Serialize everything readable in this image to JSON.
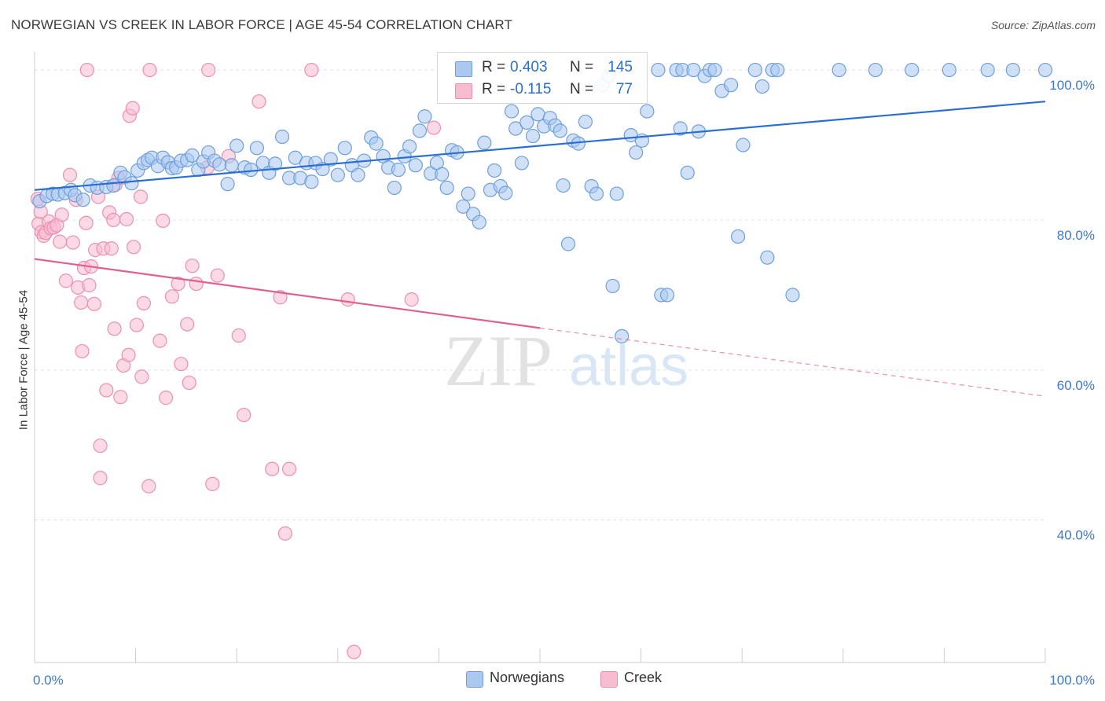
{
  "header": {
    "title": "NORWEGIAN VS CREEK IN LABOR FORCE | AGE 45-54 CORRELATION CHART",
    "source": "Source: ZipAtlas.com"
  },
  "watermark": {
    "zip": "ZIP",
    "atlas": "atlas"
  },
  "stats": [
    {
      "r_label": "R =",
      "r_value": "0.403",
      "n_label": "N =",
      "n_value": "145",
      "color": "#aac8f0",
      "text_color": "#2a6fcf"
    },
    {
      "r_label": "R =",
      "r_value": "-0.115",
      "n_label": "N =",
      "n_value": "77",
      "color": "#f7bcd0",
      "text_color": "#2a6fcf"
    }
  ],
  "legend": [
    {
      "label": "Norwegians",
      "color": "#aac8f0"
    },
    {
      "label": "Creek",
      "color": "#f7bcd0"
    }
  ],
  "chart_data": {
    "type": "scatter",
    "title": "NORWEGIAN VS CREEK IN LABOR FORCE | AGE 45-54 CORRELATION CHART",
    "xlabel": "",
    "ylabel": "In Labor Force | Age 45-54",
    "xlim": [
      0,
      100
    ],
    "ylim": [
      21,
      102
    ],
    "x_tick_labels": [
      {
        "value": 0,
        "label": "0.0%"
      },
      {
        "value": 100,
        "label": "100.0%"
      }
    ],
    "y_tick_labels": [
      {
        "value": 100,
        "label": "100.0%"
      },
      {
        "value": 80,
        "label": "80.0%"
      },
      {
        "value": 60,
        "label": "60.0%"
      },
      {
        "value": 40,
        "label": "40.0%"
      }
    ],
    "grid": true,
    "legend_position": "bottom-center",
    "series": [
      {
        "name": "Norwegians",
        "color": "#aac8f0",
        "stroke": "#6f9fdc",
        "trend": {
          "x": [
            0,
            100
          ],
          "y": [
            84.0,
            95.8
          ],
          "color": "#2a6fcf"
        },
        "points": [
          [
            0.5,
            82.5
          ],
          [
            1.2,
            83.2
          ],
          [
            1.8,
            83.5
          ],
          [
            2.3,
            83.4
          ],
          [
            3.0,
            83.6
          ],
          [
            3.6,
            84.0
          ],
          [
            4.0,
            83.3
          ],
          [
            4.8,
            82.7
          ],
          [
            5.5,
            84.6
          ],
          [
            6.2,
            84.3
          ],
          [
            7.1,
            84.4
          ],
          [
            7.8,
            84.6
          ],
          [
            8.5,
            86.3
          ],
          [
            8.9,
            85.7
          ],
          [
            9.6,
            84.9
          ],
          [
            10.2,
            86.6
          ],
          [
            10.8,
            87.6
          ],
          [
            11.2,
            88.0
          ],
          [
            11.6,
            88.3
          ],
          [
            12.2,
            87.2
          ],
          [
            12.7,
            88.3
          ],
          [
            13.2,
            87.7
          ],
          [
            13.6,
            86.9
          ],
          [
            14.0,
            87.0
          ],
          [
            14.5,
            87.9
          ],
          [
            15.1,
            88.0
          ],
          [
            15.6,
            88.6
          ],
          [
            16.2,
            86.7
          ],
          [
            16.7,
            87.8
          ],
          [
            17.2,
            89.0
          ],
          [
            17.8,
            87.9
          ],
          [
            18.3,
            87.4
          ],
          [
            19.1,
            84.8
          ],
          [
            19.5,
            87.3
          ],
          [
            20.0,
            89.9
          ],
          [
            20.8,
            87.0
          ],
          [
            21.4,
            86.7
          ],
          [
            22.0,
            89.6
          ],
          [
            22.6,
            87.6
          ],
          [
            23.2,
            86.3
          ],
          [
            23.8,
            87.5
          ],
          [
            24.5,
            91.1
          ],
          [
            25.2,
            85.6
          ],
          [
            25.8,
            88.3
          ],
          [
            26.3,
            85.6
          ],
          [
            26.9,
            87.6
          ],
          [
            27.4,
            85.1
          ],
          [
            27.8,
            87.6
          ],
          [
            28.5,
            86.8
          ],
          [
            29.3,
            88.1
          ],
          [
            30.0,
            86.0
          ],
          [
            30.7,
            89.6
          ],
          [
            31.4,
            87.3
          ],
          [
            32.0,
            86.0
          ],
          [
            32.6,
            87.9
          ],
          [
            33.3,
            91.0
          ],
          [
            33.8,
            90.2
          ],
          [
            34.5,
            88.5
          ],
          [
            35.0,
            87.0
          ],
          [
            35.6,
            84.3
          ],
          [
            36.0,
            86.7
          ],
          [
            36.6,
            88.5
          ],
          [
            37.1,
            89.8
          ],
          [
            37.7,
            87.3
          ],
          [
            38.1,
            91.9
          ],
          [
            38.6,
            93.8
          ],
          [
            39.2,
            86.2
          ],
          [
            39.8,
            87.6
          ],
          [
            40.3,
            86.1
          ],
          [
            40.8,
            84.3
          ],
          [
            41.3,
            89.3
          ],
          [
            41.8,
            89.0
          ],
          [
            42.4,
            81.8
          ],
          [
            42.9,
            83.5
          ],
          [
            43.4,
            80.8
          ],
          [
            44.0,
            79.7
          ],
          [
            44.5,
            90.3
          ],
          [
            45.1,
            84.0
          ],
          [
            45.5,
            86.6
          ],
          [
            46.1,
            84.5
          ],
          [
            46.6,
            83.6
          ],
          [
            47.2,
            94.5
          ],
          [
            47.6,
            92.2
          ],
          [
            48.2,
            87.6
          ],
          [
            48.7,
            93.0
          ],
          [
            49.3,
            91.2
          ],
          [
            49.8,
            94.1
          ],
          [
            50.4,
            92.5
          ],
          [
            51.0,
            93.6
          ],
          [
            51.5,
            92.6
          ],
          [
            52.0,
            91.9
          ],
          [
            52.3,
            84.6
          ],
          [
            52.8,
            76.8
          ],
          [
            53.3,
            90.6
          ],
          [
            53.8,
            90.2
          ],
          [
            54.5,
            93.1
          ],
          [
            55.1,
            84.5
          ],
          [
            55.6,
            83.5
          ],
          [
            56.2,
            98.0
          ],
          [
            56.8,
            99.2
          ],
          [
            57.2,
            71.2
          ],
          [
            57.6,
            83.5
          ],
          [
            58.1,
            64.5
          ],
          [
            59.0,
            91.3
          ],
          [
            59.5,
            89.0
          ],
          [
            60.1,
            90.6
          ],
          [
            60.6,
            94.5
          ],
          [
            61.7,
            100.0
          ],
          [
            62.0,
            70.0
          ],
          [
            62.6,
            70.0
          ],
          [
            63.5,
            100.0
          ],
          [
            63.9,
            92.2
          ],
          [
            64.1,
            100.0
          ],
          [
            64.6,
            86.3
          ],
          [
            65.2,
            100.0
          ],
          [
            65.7,
            91.8
          ],
          [
            66.3,
            99.2
          ],
          [
            66.8,
            100.0
          ],
          [
            67.3,
            100.0
          ],
          [
            68.0,
            97.2
          ],
          [
            68.9,
            98.0
          ],
          [
            69.6,
            77.8
          ],
          [
            70.1,
            90.0
          ],
          [
            71.3,
            100.0
          ],
          [
            72.0,
            97.8
          ],
          [
            72.5,
            75.0
          ],
          [
            73.0,
            100.0
          ],
          [
            73.5,
            100.0
          ],
          [
            75.0,
            70.0
          ],
          [
            79.6,
            100.0
          ],
          [
            83.2,
            100.0
          ],
          [
            86.8,
            100.0
          ],
          [
            90.5,
            100.0
          ],
          [
            94.3,
            100.0
          ],
          [
            96.8,
            100.0
          ],
          [
            100.0,
            100.0
          ]
        ]
      },
      {
        "name": "Creek",
        "color": "#f7bcd0",
        "stroke": "#eb8fb0",
        "trend": {
          "x": [
            0,
            50
          ],
          "y": [
            74.8,
            65.6
          ],
          "color": "#e0608e",
          "dashed_extension": {
            "x": [
              50,
              100
            ],
            "y": [
              65.6,
              56.5
            ]
          }
        },
        "points": [
          [
            0.4,
            79.5
          ],
          [
            0.7,
            78.4
          ],
          [
            0.9,
            77.9
          ],
          [
            1.1,
            78.3
          ],
          [
            1.4,
            79.8
          ],
          [
            1.6,
            78.9
          ],
          [
            1.9,
            79.0
          ],
          [
            2.2,
            79.3
          ],
          [
            2.5,
            77.1
          ],
          [
            2.7,
            80.7
          ],
          [
            3.1,
            71.9
          ],
          [
            3.5,
            86.0
          ],
          [
            3.8,
            77.0
          ],
          [
            4.1,
            82.7
          ],
          [
            4.3,
            71.0
          ],
          [
            4.6,
            69.0
          ],
          [
            4.7,
            62.5
          ],
          [
            4.9,
            73.6
          ],
          [
            5.1,
            79.6
          ],
          [
            5.4,
            71.3
          ],
          [
            5.6,
            73.8
          ],
          [
            5.9,
            68.8
          ],
          [
            6.0,
            76.0
          ],
          [
            6.3,
            83.1
          ],
          [
            6.5,
            45.6
          ],
          [
            6.5,
            49.9
          ],
          [
            6.8,
            76.2
          ],
          [
            7.1,
            57.3
          ],
          [
            7.4,
            81.0
          ],
          [
            7.6,
            76.2
          ],
          [
            7.8,
            80.0
          ],
          [
            7.9,
            65.5
          ],
          [
            8.0,
            84.7
          ],
          [
            8.3,
            85.6
          ],
          [
            8.5,
            56.4
          ],
          [
            8.8,
            60.6
          ],
          [
            9.1,
            80.1
          ],
          [
            9.3,
            62.0
          ],
          [
            9.4,
            93.9
          ],
          [
            9.7,
            94.9
          ],
          [
            9.8,
            76.4
          ],
          [
            10.1,
            66.0
          ],
          [
            10.5,
            83.1
          ],
          [
            10.6,
            59.1
          ],
          [
            10.8,
            68.9
          ],
          [
            11.3,
            44.5
          ],
          [
            12.4,
            63.9
          ],
          [
            12.7,
            79.9
          ],
          [
            13.0,
            56.3
          ],
          [
            13.6,
            69.8
          ],
          [
            14.2,
            71.5
          ],
          [
            14.5,
            60.8
          ],
          [
            15.1,
            66.1
          ],
          [
            15.3,
            58.3
          ],
          [
            15.6,
            73.9
          ],
          [
            16.0,
            71.5
          ],
          [
            17.1,
            87.0
          ],
          [
            17.6,
            44.8
          ],
          [
            18.1,
            72.6
          ],
          [
            19.2,
            88.5
          ],
          [
            20.2,
            64.6
          ],
          [
            20.7,
            54.0
          ],
          [
            22.2,
            95.8
          ],
          [
            23.5,
            46.8
          ],
          [
            24.3,
            69.7
          ],
          [
            24.8,
            38.2
          ],
          [
            25.2,
            46.8
          ],
          [
            27.4,
            100.0
          ],
          [
            31.0,
            69.4
          ],
          [
            31.6,
            22.4
          ],
          [
            37.3,
            69.4
          ],
          [
            39.5,
            92.3
          ],
          [
            5.2,
            100.0
          ],
          [
            11.4,
            100.0
          ],
          [
            17.2,
            100.0
          ],
          [
            0.3,
            82.8
          ],
          [
            0.6,
            81.1
          ]
        ]
      }
    ]
  }
}
